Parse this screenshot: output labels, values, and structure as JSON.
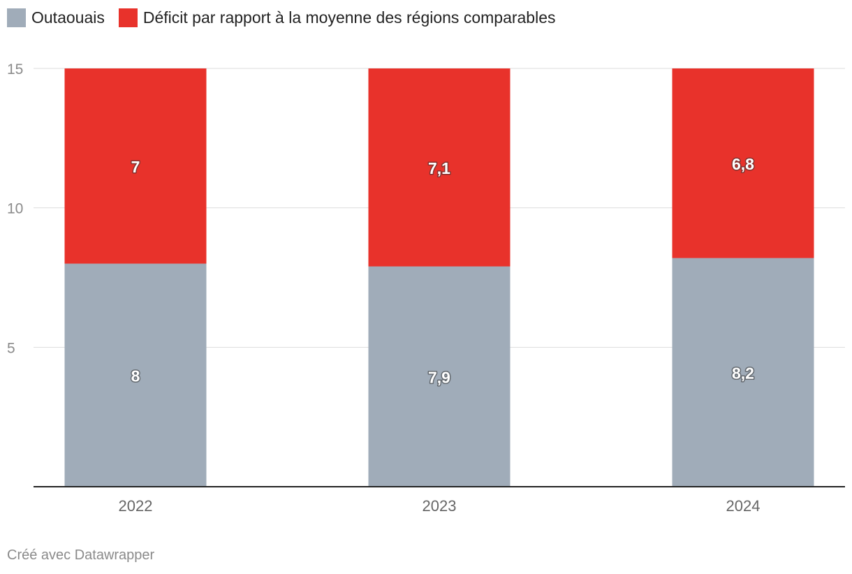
{
  "chart_data": {
    "type": "bar",
    "stacked": true,
    "categories": [
      "2022",
      "2023",
      "2024"
    ],
    "series": [
      {
        "name": "Outaouais",
        "values": [
          8,
          7.9,
          8.2
        ],
        "labels": [
          "8",
          "7,9",
          "8,2"
        ],
        "color": "#a0acb9"
      },
      {
        "name": "Déficit par rapport à la moyenne des régions comparables",
        "values": [
          7,
          7.1,
          6.8
        ],
        "labels": [
          "7",
          "7,1",
          "6,8"
        ],
        "color": "#e8322b"
      }
    ],
    "title": "",
    "xlabel": "",
    "ylabel": "",
    "ylim": [
      0,
      15
    ],
    "yticks": [
      5,
      10,
      15
    ],
    "ytick_labels": [
      "5",
      "10",
      "15"
    ],
    "grid": true,
    "legend_position": "top-left"
  },
  "footer": {
    "credit": "Créé avec Datawrapper"
  }
}
